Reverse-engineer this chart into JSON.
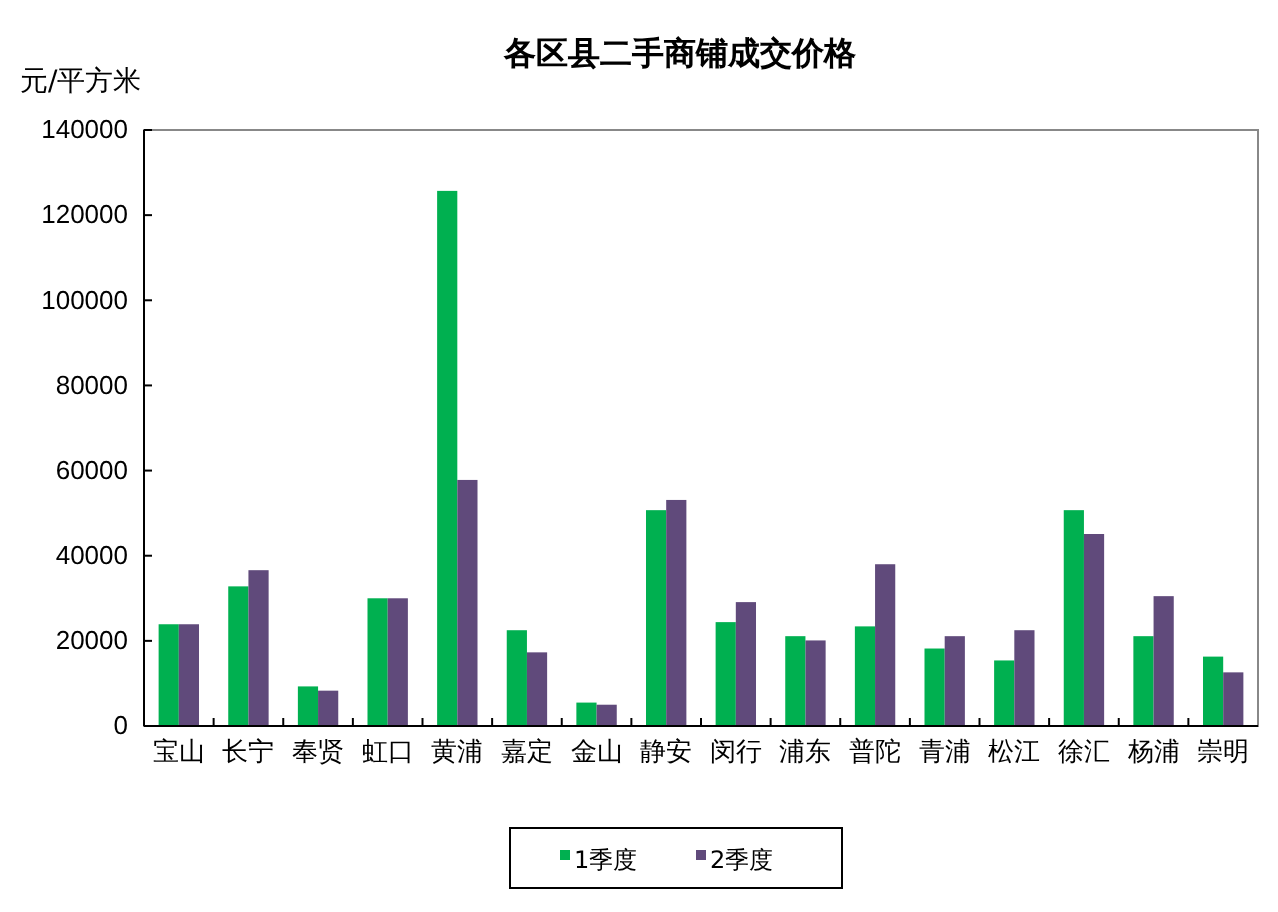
{
  "chart_data": {
    "type": "bar",
    "title": "各区县二手商铺成交价格",
    "ylabel": "元/平方米",
    "categories": [
      "宝山",
      "长宁",
      "奉贤",
      "虹口",
      "黄浦",
      "嘉定",
      "金山",
      "静安",
      "闵行",
      "浦东",
      "普陀",
      "青浦",
      "松江",
      "徐汇",
      "杨浦",
      "崇明"
    ],
    "series": [
      {
        "name": "1季度",
        "color": "#00b050",
        "values": [
          23900,
          32800,
          9300,
          30000,
          125700,
          22500,
          5500,
          50700,
          24400,
          21100,
          23400,
          18200,
          15400,
          50700,
          21100,
          16300
        ]
      },
      {
        "name": "2季度",
        "color": "#604a7b",
        "values": [
          23900,
          36600,
          8300,
          30000,
          57800,
          17300,
          5000,
          53100,
          29100,
          20100,
          38000,
          21100,
          22500,
          45100,
          30500,
          12600
        ]
      }
    ],
    "ylim": [
      0,
      140000
    ],
    "yticks": [
      0,
      20000,
      40000,
      60000,
      80000,
      100000,
      120000,
      140000
    ],
    "grid": false,
    "legend": "bottom"
  }
}
